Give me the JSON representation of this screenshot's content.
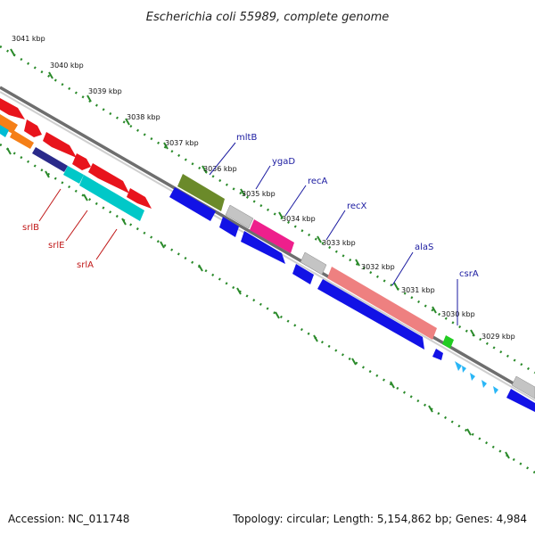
{
  "title": "Escherichia coli 55989, complete genome",
  "footer": {
    "accession": "Accession: NC_011748",
    "summary": "Topology: circular; Length: 5,154,862 bp; Genes: 4,984"
  },
  "ticks": [
    "3041 kbp",
    "3040 kbp",
    "3039 kbp",
    "3038 kbp",
    "3037 kbp",
    "3036 kbp",
    "3035 kbp",
    "3034 kbp",
    "3033 kbp",
    "3032 kbp",
    "3031 kbp",
    "3030 kbp",
    "3029 kbp"
  ],
  "gene_labels_forward": [
    "mltB",
    "ygaD",
    "recA",
    "recX",
    "alaS",
    "csrA"
  ],
  "gene_labels_reverse": [
    "srlB",
    "srlE",
    "srlA"
  ],
  "colors": {
    "backbone": "#777777",
    "tick": "#2a8a2a",
    "label_line_blue": "#1a1aa0",
    "label_line_red": "#c01818"
  }
}
